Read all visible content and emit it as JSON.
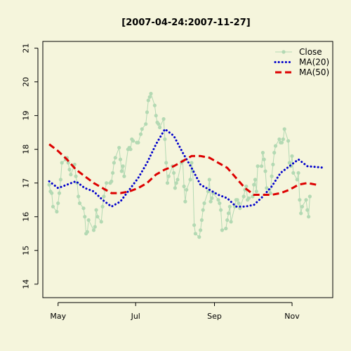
{
  "chart_data": {
    "type": "line",
    "title": "[2007-04-24:2007-11-27]",
    "xlabel": "",
    "ylabel": "",
    "ylim": [
      13.6,
      21.2
    ],
    "xlim": [
      "2007-04-19",
      "2007-12-03"
    ],
    "x_ticks": [
      {
        "date": "2007-05-01",
        "label": "May"
      },
      {
        "date": "2007-07-01",
        "label": "Jul"
      },
      {
        "date": "2007-09-01",
        "label": "Sep"
      },
      {
        "date": "2007-11-01",
        "label": "Nov"
      }
    ],
    "y_ticks": [
      14,
      15,
      16,
      17,
      18,
      19,
      20,
      21
    ],
    "legend_position": "top-right",
    "series": [
      {
        "name": "Close",
        "color": "#b3d9b3",
        "style": "line-points",
        "points": [
          [
            "2007-04-24",
            16.95
          ],
          [
            "2007-04-25",
            16.75
          ],
          [
            "2007-04-26",
            16.7
          ],
          [
            "2007-04-27",
            16.3
          ],
          [
            "2007-04-30",
            16.15
          ],
          [
            "2007-05-01",
            16.4
          ],
          [
            "2007-05-02",
            16.7
          ],
          [
            "2007-05-03",
            17.1
          ],
          [
            "2007-05-04",
            17.6
          ],
          [
            "2007-05-07",
            17.7
          ],
          [
            "2007-05-08",
            17.75
          ],
          [
            "2007-05-09",
            17.6
          ],
          [
            "2007-05-10",
            17.4
          ],
          [
            "2007-05-11",
            17.25
          ],
          [
            "2007-05-14",
            17.55
          ],
          [
            "2007-05-15",
            17.2
          ],
          [
            "2007-05-16",
            17.0
          ],
          [
            "2007-05-17",
            16.6
          ],
          [
            "2007-05-18",
            16.4
          ],
          [
            "2007-05-21",
            16.25
          ],
          [
            "2007-05-22",
            16.0
          ],
          [
            "2007-05-23",
            15.5
          ],
          [
            "2007-05-24",
            15.55
          ],
          [
            "2007-05-25",
            15.9
          ],
          [
            "2007-05-29",
            15.6
          ],
          [
            "2007-05-30",
            15.7
          ],
          [
            "2007-05-31",
            16.2
          ],
          [
            "2007-06-01",
            16.0
          ],
          [
            "2007-06-04",
            15.85
          ],
          [
            "2007-06-05",
            16.3
          ],
          [
            "2007-06-06",
            16.6
          ],
          [
            "2007-06-07",
            16.8
          ],
          [
            "2007-06-08",
            17.0
          ],
          [
            "2007-06-11",
            17.0
          ],
          [
            "2007-06-12",
            17.05
          ],
          [
            "2007-06-13",
            17.3
          ],
          [
            "2007-06-14",
            17.6
          ],
          [
            "2007-06-15",
            17.75
          ],
          [
            "2007-06-18",
            18.05
          ],
          [
            "2007-06-19",
            17.7
          ],
          [
            "2007-06-20",
            17.35
          ],
          [
            "2007-06-21",
            17.5
          ],
          [
            "2007-06-22",
            17.2
          ],
          [
            "2007-06-25",
            18.0
          ],
          [
            "2007-06-26",
            18.05
          ],
          [
            "2007-06-27",
            18.0
          ],
          [
            "2007-06-28",
            18.3
          ],
          [
            "2007-06-29",
            18.25
          ],
          [
            "2007-07-02",
            18.2
          ],
          [
            "2007-07-03",
            18.2
          ],
          [
            "2007-07-05",
            18.45
          ],
          [
            "2007-07-06",
            18.6
          ],
          [
            "2007-07-09",
            18.75
          ],
          [
            "2007-07-10",
            19.1
          ],
          [
            "2007-07-11",
            19.45
          ],
          [
            "2007-07-12",
            19.55
          ],
          [
            "2007-07-13",
            19.65
          ],
          [
            "2007-07-16",
            19.3
          ],
          [
            "2007-07-17",
            19.0
          ],
          [
            "2007-07-18",
            18.8
          ],
          [
            "2007-07-19",
            18.75
          ],
          [
            "2007-07-20",
            18.65
          ],
          [
            "2007-07-23",
            18.9
          ],
          [
            "2007-07-24",
            18.3
          ],
          [
            "2007-07-25",
            17.6
          ],
          [
            "2007-07-26",
            17.0
          ],
          [
            "2007-07-27",
            17.2
          ],
          [
            "2007-07-30",
            17.5
          ],
          [
            "2007-07-31",
            17.3
          ],
          [
            "2007-08-01",
            16.85
          ],
          [
            "2007-08-02",
            17.0
          ],
          [
            "2007-08-03",
            17.1
          ],
          [
            "2007-08-06",
            17.6
          ],
          [
            "2007-08-07",
            17.65
          ],
          [
            "2007-08-08",
            16.9
          ],
          [
            "2007-08-09",
            16.45
          ],
          [
            "2007-08-10",
            16.8
          ],
          [
            "2007-08-13",
            17.1
          ],
          [
            "2007-08-14",
            17.6
          ],
          [
            "2007-08-15",
            17.35
          ],
          [
            "2007-08-16",
            15.75
          ],
          [
            "2007-08-17",
            15.5
          ],
          [
            "2007-08-20",
            15.4
          ],
          [
            "2007-08-21",
            15.6
          ],
          [
            "2007-08-22",
            15.9
          ],
          [
            "2007-08-23",
            16.2
          ],
          [
            "2007-08-24",
            16.4
          ],
          [
            "2007-08-27",
            16.75
          ],
          [
            "2007-08-28",
            17.1
          ],
          [
            "2007-08-29",
            16.45
          ],
          [
            "2007-08-30",
            16.55
          ],
          [
            "2007-08-31",
            16.7
          ],
          [
            "2007-09-04",
            16.5
          ],
          [
            "2007-09-05",
            16.4
          ],
          [
            "2007-09-06",
            16.2
          ],
          [
            "2007-09-07",
            15.6
          ],
          [
            "2007-09-10",
            15.65
          ],
          [
            "2007-09-11",
            15.9
          ],
          [
            "2007-09-12",
            16.1
          ],
          [
            "2007-09-13",
            16.3
          ],
          [
            "2007-09-14",
            15.85
          ],
          [
            "2007-09-17",
            16.3
          ],
          [
            "2007-09-18",
            16.5
          ],
          [
            "2007-09-19",
            16.5
          ],
          [
            "2007-09-20",
            16.4
          ],
          [
            "2007-09-21",
            16.25
          ],
          [
            "2007-09-24",
            16.6
          ],
          [
            "2007-09-25",
            16.8
          ],
          [
            "2007-09-26",
            16.9
          ],
          [
            "2007-09-27",
            16.5
          ],
          [
            "2007-09-28",
            16.55
          ],
          [
            "2007-10-01",
            16.6
          ],
          [
            "2007-10-02",
            16.95
          ],
          [
            "2007-10-03",
            17.1
          ],
          [
            "2007-10-04",
            16.75
          ],
          [
            "2007-10-05",
            17.5
          ],
          [
            "2007-10-08",
            17.5
          ],
          [
            "2007-10-09",
            17.9
          ],
          [
            "2007-10-10",
            17.7
          ],
          [
            "2007-10-11",
            17.35
          ],
          [
            "2007-10-12",
            16.85
          ],
          [
            "2007-10-15",
            16.7
          ],
          [
            "2007-10-16",
            17.2
          ],
          [
            "2007-10-17",
            17.55
          ],
          [
            "2007-10-18",
            17.9
          ],
          [
            "2007-10-19",
            18.1
          ],
          [
            "2007-10-22",
            18.3
          ],
          [
            "2007-10-23",
            18.2
          ],
          [
            "2007-10-24",
            18.2
          ],
          [
            "2007-10-25",
            18.3
          ],
          [
            "2007-10-26",
            18.6
          ],
          [
            "2007-10-29",
            18.25
          ],
          [
            "2007-10-30",
            17.6
          ],
          [
            "2007-10-31",
            17.5
          ],
          [
            "2007-11-01",
            17.8
          ],
          [
            "2007-11-02",
            17.3
          ],
          [
            "2007-11-05",
            17.1
          ],
          [
            "2007-11-06",
            17.3
          ],
          [
            "2007-11-07",
            16.5
          ],
          [
            "2007-11-08",
            16.1
          ],
          [
            "2007-11-09",
            16.3
          ],
          [
            "2007-11-12",
            16.5
          ],
          [
            "2007-11-13",
            16.2
          ],
          [
            "2007-11-14",
            16.0
          ],
          [
            "2007-11-15",
            16.6
          ]
        ]
      },
      {
        "name": "MA(20)",
        "color": "#0000cc",
        "style": "dotted",
        "points": [
          [
            "2007-04-24",
            17.05
          ],
          [
            "2007-05-01",
            16.85
          ],
          [
            "2007-05-08",
            16.95
          ],
          [
            "2007-05-15",
            17.05
          ],
          [
            "2007-05-22",
            16.85
          ],
          [
            "2007-05-29",
            16.75
          ],
          [
            "2007-06-05",
            16.5
          ],
          [
            "2007-06-12",
            16.3
          ],
          [
            "2007-06-19",
            16.45
          ],
          [
            "2007-06-26",
            16.8
          ],
          [
            "2007-07-03",
            17.15
          ],
          [
            "2007-07-10",
            17.6
          ],
          [
            "2007-07-17",
            18.15
          ],
          [
            "2007-07-24",
            18.6
          ],
          [
            "2007-07-31",
            18.4
          ],
          [
            "2007-08-07",
            17.9
          ],
          [
            "2007-08-14",
            17.45
          ],
          [
            "2007-08-21",
            16.95
          ],
          [
            "2007-08-28",
            16.8
          ],
          [
            "2007-09-04",
            16.65
          ],
          [
            "2007-09-11",
            16.55
          ],
          [
            "2007-09-18",
            16.3
          ],
          [
            "2007-09-25",
            16.3
          ],
          [
            "2007-10-02",
            16.35
          ],
          [
            "2007-10-09",
            16.6
          ],
          [
            "2007-10-16",
            16.9
          ],
          [
            "2007-10-23",
            17.3
          ],
          [
            "2007-10-30",
            17.5
          ],
          [
            "2007-11-06",
            17.7
          ],
          [
            "2007-11-13",
            17.5
          ],
          [
            "2007-11-27",
            17.45
          ]
        ]
      },
      {
        "name": "MA(50)",
        "color": "#dd0000",
        "style": "dashed",
        "points": [
          [
            "2007-04-24",
            18.15
          ],
          [
            "2007-05-01",
            17.95
          ],
          [
            "2007-05-08",
            17.7
          ],
          [
            "2007-05-15",
            17.4
          ],
          [
            "2007-05-22",
            17.2
          ],
          [
            "2007-05-29",
            17.0
          ],
          [
            "2007-06-05",
            16.85
          ],
          [
            "2007-06-12",
            16.7
          ],
          [
            "2007-06-19",
            16.7
          ],
          [
            "2007-06-26",
            16.75
          ],
          [
            "2007-07-03",
            16.85
          ],
          [
            "2007-07-10",
            17.0
          ],
          [
            "2007-07-17",
            17.25
          ],
          [
            "2007-07-24",
            17.4
          ],
          [
            "2007-07-31",
            17.5
          ],
          [
            "2007-08-07",
            17.65
          ],
          [
            "2007-08-14",
            17.8
          ],
          [
            "2007-08-21",
            17.8
          ],
          [
            "2007-08-28",
            17.75
          ],
          [
            "2007-09-04",
            17.6
          ],
          [
            "2007-09-11",
            17.45
          ],
          [
            "2007-09-18",
            17.15
          ],
          [
            "2007-09-25",
            16.85
          ],
          [
            "2007-10-02",
            16.65
          ],
          [
            "2007-10-09",
            16.65
          ],
          [
            "2007-10-16",
            16.65
          ],
          [
            "2007-10-23",
            16.7
          ],
          [
            "2007-10-30",
            16.8
          ],
          [
            "2007-11-06",
            16.95
          ],
          [
            "2007-11-13",
            17.0
          ],
          [
            "2007-11-20",
            16.95
          ]
        ]
      }
    ]
  }
}
